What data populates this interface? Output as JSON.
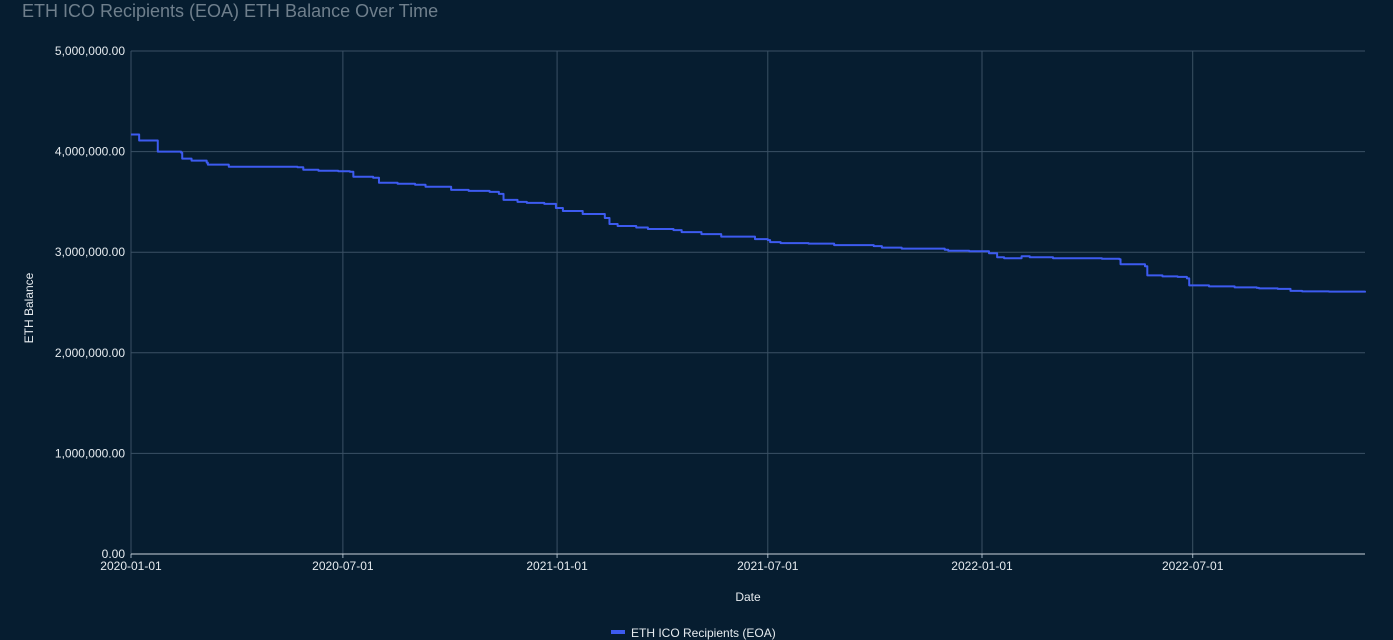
{
  "header": {
    "title": "ETH ICO Recipients (EOA) ETH Balance Over Time"
  },
  "colors": {
    "background": "#061d30",
    "grid": "#3a5064",
    "series": "#3d5bf0",
    "text": "#e6ebef",
    "title": "#6f7f8c"
  },
  "chart_data": {
    "type": "line",
    "title": "ETH ICO Recipients (EOA) ETH Balance Over Time",
    "xlabel": "Date",
    "ylabel": "ETH Balance",
    "xlim": [
      "2020-01-01",
      "2022-11-26"
    ],
    "ylim": [
      0,
      5000000
    ],
    "grid": true,
    "legend_position": "bottom",
    "y_ticks": [
      0,
      1000000,
      2000000,
      3000000,
      4000000,
      5000000
    ],
    "y_tick_labels": [
      "0.00",
      "1,000,000.00",
      "2,000,000.00",
      "3,000,000.00",
      "4,000,000.00",
      "5,000,000.00"
    ],
    "x_ticks": [
      "2020-01-01",
      "2020-07-01",
      "2021-01-01",
      "2021-07-01",
      "2022-01-01",
      "2022-07-01"
    ],
    "x_tick_labels": [
      "2020-01-01",
      "2020-07-01",
      "2021-01-01",
      "2021-07-01",
      "2022-01-01",
      "2022-07-01"
    ],
    "series": [
      {
        "name": "ETH ICO Recipients (EOA)",
        "points": [
          [
            "2020-01-01",
            4170000
          ],
          [
            "2020-01-07",
            4170000
          ],
          [
            "2020-01-08",
            4110000
          ],
          [
            "2020-01-23",
            4110000
          ],
          [
            "2020-01-24",
            4000000
          ],
          [
            "2020-02-13",
            3990000
          ],
          [
            "2020-02-14",
            3930000
          ],
          [
            "2020-02-22",
            3910000
          ],
          [
            "2020-03-06",
            3890000
          ],
          [
            "2020-03-07",
            3870000
          ],
          [
            "2020-03-25",
            3850000
          ],
          [
            "2020-05-23",
            3845000
          ],
          [
            "2020-05-28",
            3820000
          ],
          [
            "2020-06-10",
            3810000
          ],
          [
            "2020-06-27",
            3805000
          ],
          [
            "2020-07-07",
            3800000
          ],
          [
            "2020-07-10",
            3750000
          ],
          [
            "2020-07-27",
            3740000
          ],
          [
            "2020-08-01",
            3690000
          ],
          [
            "2020-08-17",
            3680000
          ],
          [
            "2020-09-01",
            3670000
          ],
          [
            "2020-09-10",
            3650000
          ],
          [
            "2020-10-02",
            3620000
          ],
          [
            "2020-10-17",
            3610000
          ],
          [
            "2020-11-04",
            3600000
          ],
          [
            "2020-11-12",
            3580000
          ],
          [
            "2020-11-16",
            3520000
          ],
          [
            "2020-11-28",
            3500000
          ],
          [
            "2020-12-06",
            3490000
          ],
          [
            "2020-12-21",
            3480000
          ],
          [
            "2020-12-31",
            3440000
          ],
          [
            "2021-01-06",
            3410000
          ],
          [
            "2021-01-23",
            3380000
          ],
          [
            "2021-02-11",
            3340000
          ],
          [
            "2021-02-15",
            3280000
          ],
          [
            "2021-02-22",
            3260000
          ],
          [
            "2021-03-10",
            3245000
          ],
          [
            "2021-03-20",
            3230000
          ],
          [
            "2021-04-11",
            3220000
          ],
          [
            "2021-04-18",
            3200000
          ],
          [
            "2021-05-05",
            3180000
          ],
          [
            "2021-05-22",
            3155000
          ],
          [
            "2021-06-20",
            3130000
          ],
          [
            "2021-07-01",
            3120000
          ],
          [
            "2021-07-03",
            3100000
          ],
          [
            "2021-07-12",
            3090000
          ],
          [
            "2021-08-05",
            3085000
          ],
          [
            "2021-08-27",
            3070000
          ],
          [
            "2021-09-30",
            3060000
          ],
          [
            "2021-10-07",
            3045000
          ],
          [
            "2021-10-24",
            3035000
          ],
          [
            "2021-11-30",
            3025000
          ],
          [
            "2021-12-03",
            3015000
          ],
          [
            "2021-12-21",
            3010000
          ],
          [
            "2022-01-07",
            2990000
          ],
          [
            "2022-01-14",
            2950000
          ],
          [
            "2022-01-20",
            2940000
          ],
          [
            "2022-02-03",
            2940000
          ],
          [
            "2022-02-04",
            2960000
          ],
          [
            "2022-02-11",
            2950000
          ],
          [
            "2022-03-03",
            2940000
          ],
          [
            "2022-04-14",
            2935000
          ],
          [
            "2022-04-29",
            2930000
          ],
          [
            "2022-04-30",
            2880000
          ],
          [
            "2022-05-21",
            2860000
          ],
          [
            "2022-05-23",
            2770000
          ],
          [
            "2022-06-05",
            2760000
          ],
          [
            "2022-06-18",
            2755000
          ],
          [
            "2022-06-26",
            2740000
          ],
          [
            "2022-06-28",
            2670000
          ],
          [
            "2022-07-15",
            2660000
          ],
          [
            "2022-08-06",
            2650000
          ],
          [
            "2022-08-25",
            2645000
          ],
          [
            "2022-08-27",
            2640000
          ],
          [
            "2022-09-12",
            2635000
          ],
          [
            "2022-09-23",
            2615000
          ],
          [
            "2022-10-03",
            2610000
          ],
          [
            "2022-10-26",
            2608000
          ],
          [
            "2022-11-26",
            2600000
          ]
        ]
      }
    ]
  }
}
